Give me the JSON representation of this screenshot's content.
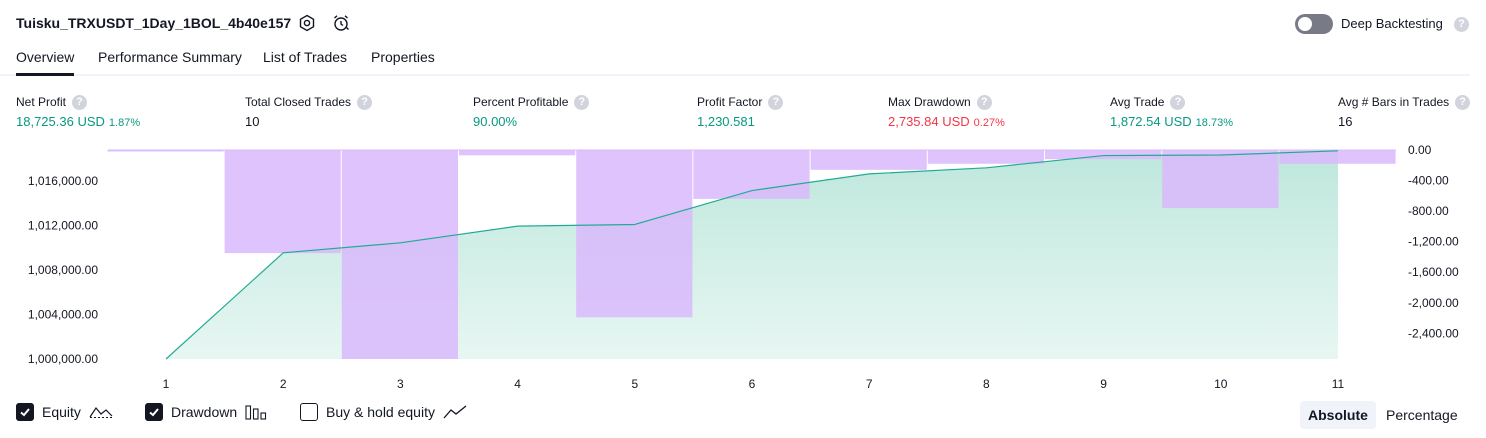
{
  "header": {
    "strategy_name": "Tuisku_TRXUSDT_1Day_1BOL_4b40e157",
    "settings_icon": "settings-gear-icon",
    "alert_icon": "alarm-clock-icon",
    "deep_backtesting_label": "Deep Backtesting",
    "deep_backtesting_enabled": false,
    "help_glyph": "?"
  },
  "tabs": [
    {
      "label": "Overview",
      "active": true
    },
    {
      "label": "Performance Summary",
      "active": false
    },
    {
      "label": "List of Trades",
      "active": false
    },
    {
      "label": "Properties",
      "active": false
    }
  ],
  "metrics": [
    {
      "label": "Net Profit",
      "value": "18,725.36 USD",
      "pct": "1.87%",
      "tone": "green"
    },
    {
      "label": "Total Closed Trades",
      "value": "10",
      "pct": "",
      "tone": "neutral"
    },
    {
      "label": "Percent Profitable",
      "value": "90.00%",
      "pct": "",
      "tone": "green"
    },
    {
      "label": "Profit Factor",
      "value": "1,230.581",
      "pct": "",
      "tone": "green"
    },
    {
      "label": "Max Drawdown",
      "value": "2,735.84 USD",
      "pct": "0.27%",
      "tone": "red"
    },
    {
      "label": "Avg Trade",
      "value": "1,872.54 USD",
      "pct": "18.73%",
      "tone": "green"
    },
    {
      "label": "Avg # Bars in Trades",
      "value": "16",
      "pct": "",
      "tone": "neutral"
    }
  ],
  "colors": {
    "equity_line": "#22ab94",
    "equity_fill": "#b2e3d6",
    "drawdown_bar": "#d9b8fc",
    "positive": "#089981",
    "negative": "#f23645"
  },
  "chart_data": {
    "type": "area",
    "x": [
      1,
      2,
      3,
      4,
      5,
      6,
      7,
      8,
      9,
      10,
      11
    ],
    "x_tick_labels": [
      "1",
      "2",
      "3",
      "4",
      "5",
      "6",
      "7",
      "8",
      "9",
      "10",
      "11"
    ],
    "left_axis": {
      "ticks": [
        1000000,
        1004000,
        1008000,
        1012000,
        1016000
      ],
      "tick_labels": [
        "1,000,000.00",
        "1,004,000.00",
        "1,008,000.00",
        "1,012,000.00",
        "1,016,000.00"
      ],
      "range": [
        1000000,
        1018800
      ]
    },
    "right_axis": {
      "ticks": [
        0,
        -400,
        -800,
        -1200,
        -1600,
        -2000,
        -2400
      ],
      "tick_labels": [
        "0.00",
        "-400.00",
        "-800.00",
        "-1,200.00",
        "-1,600.00",
        "-2,000.00",
        "-2,400.00"
      ],
      "range": [
        -2736,
        0
      ]
    },
    "series": [
      {
        "name": "Equity",
        "values": [
          1000000,
          1009550,
          1010450,
          1011950,
          1012100,
          1015150,
          1016650,
          1017200,
          1018300,
          1018350,
          1018725
        ]
      },
      {
        "name": "Drawdown",
        "values": [
          -20,
          -1350,
          -2736,
          -70,
          -2190,
          -640,
          -260,
          -180,
          -120,
          -760,
          -180
        ]
      }
    ],
    "grid": false
  },
  "legend": {
    "equity": {
      "label": "Equity",
      "checked": true,
      "icon": "equity-line-icon"
    },
    "drawdown": {
      "label": "Drawdown",
      "checked": true,
      "icon": "drawdown-bars-icon"
    },
    "buy_hold": {
      "label": "Buy & hold equity",
      "checked": false,
      "icon": "buy-hold-line-icon"
    }
  },
  "view_toggle": {
    "absolute_label": "Absolute",
    "percentage_label": "Percentage",
    "selected": "Absolute"
  }
}
